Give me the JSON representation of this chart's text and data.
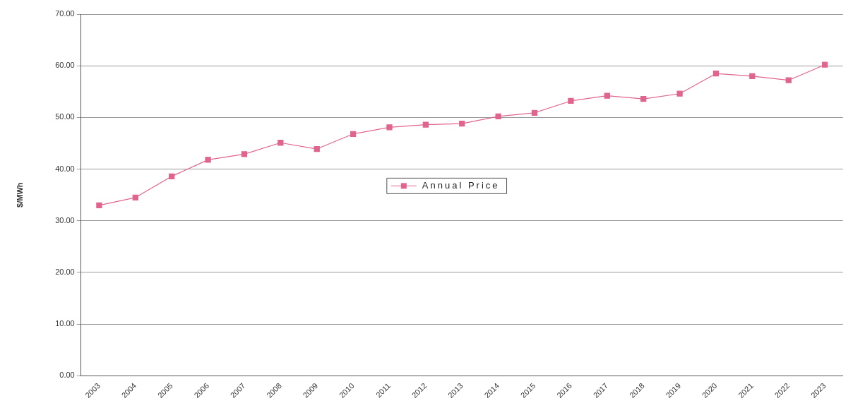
{
  "chart_data": {
    "type": "line",
    "ylabel": "$/MWh",
    "categories": [
      "2003",
      "2004",
      "2005",
      "2006",
      "2007",
      "2008",
      "2009",
      "2010",
      "2011",
      "2012",
      "2013",
      "2014",
      "2015",
      "2016",
      "2017",
      "2018",
      "2019",
      "2020",
      "2021",
      "2022",
      "2023"
    ],
    "series": [
      {
        "name": "Annual Price",
        "color": "#e0648c",
        "values": [
          33.0,
          34.5,
          38.6,
          41.8,
          42.9,
          45.1,
          43.9,
          46.8,
          48.1,
          48.6,
          48.8,
          50.2,
          50.9,
          53.2,
          54.2,
          53.6,
          54.6,
          58.5,
          58.0,
          57.2,
          60.2
        ]
      }
    ],
    "ylim": [
      0,
      70
    ],
    "yticks": [
      {
        "value": 0,
        "label": "0.00"
      },
      {
        "value": 10,
        "label": "10.00"
      },
      {
        "value": 20,
        "label": "20.00"
      },
      {
        "value": 30,
        "label": "30.00"
      },
      {
        "value": 40,
        "label": "40.00"
      },
      {
        "value": 50,
        "label": "50.00"
      },
      {
        "value": 60,
        "label": "60.00"
      },
      {
        "value": 70,
        "label": "70.00"
      }
    ],
    "grid": "y",
    "legend": "center",
    "marker": "square",
    "line_style": "solid"
  }
}
